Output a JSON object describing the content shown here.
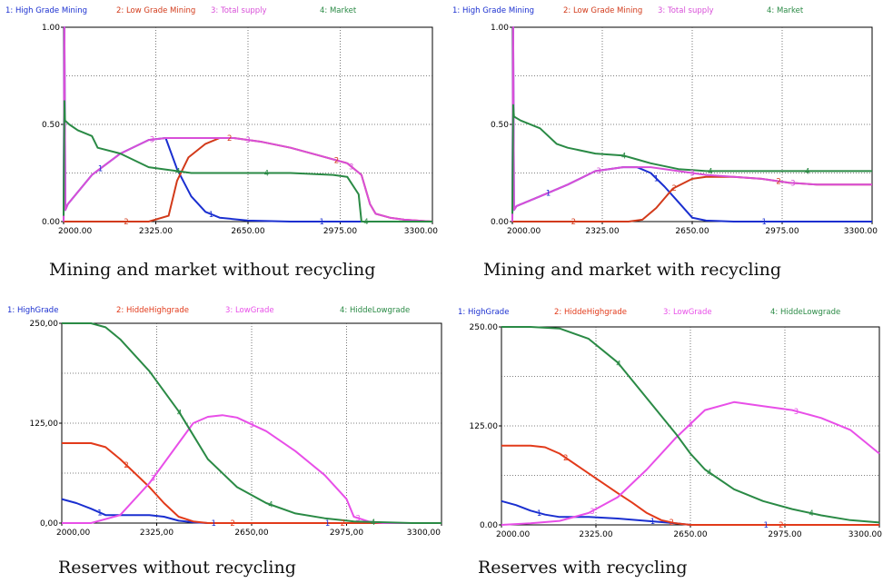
{
  "chart_data": [
    {
      "type": "line",
      "caption": "Mining and market without recycling",
      "legend": [
        "1: High Grade Mining",
        "2: Low Grade Mining",
        "3: Total supply",
        "4: Market"
      ],
      "colors": [
        "#1a2fd0",
        "#d23a1a",
        "#d84fd8",
        "#2a8a45"
      ],
      "xlim": [
        2000,
        3300
      ],
      "ylim": [
        0,
        1
      ],
      "x_ticks": [
        "2000.00",
        "2325.00",
        "2650.00",
        "2975.00",
        "3300.00"
      ],
      "y_ticks": [
        "0.00",
        "0.50",
        "1.00"
      ],
      "series": [
        {
          "name": "High Grade Mining",
          "x": [
            2000,
            2003,
            2006,
            2015,
            2100,
            2200,
            2300,
            2360,
            2400,
            2450,
            2500,
            2550,
            2650,
            2800,
            3000,
            3300
          ],
          "y": [
            0,
            1.0,
            0.06,
            0.09,
            0.24,
            0.35,
            0.42,
            0.43,
            0.27,
            0.13,
            0.05,
            0.02,
            0.005,
            0,
            0,
            0
          ]
        },
        {
          "name": "Low Grade Mining",
          "x": [
            2000,
            2300,
            2370,
            2400,
            2440,
            2500,
            2550,
            2600,
            2700,
            2800,
            2900,
            3000,
            3050,
            3080,
            3100,
            3150,
            3200,
            3300
          ],
          "y": [
            0,
            0,
            0.03,
            0.21,
            0.33,
            0.4,
            0.43,
            0.43,
            0.41,
            0.38,
            0.34,
            0.3,
            0.24,
            0.09,
            0.04,
            0.02,
            0.01,
            0
          ]
        },
        {
          "name": "Total supply",
          "x": [
            2000,
            2003,
            2006,
            2015,
            2100,
            2200,
            2300,
            2360,
            2400,
            2450,
            2500,
            2550,
            2600,
            2700,
            2800,
            2900,
            3000,
            3050,
            3080,
            3100,
            3150,
            3200,
            3300
          ],
          "y": [
            0,
            1.0,
            0.06,
            0.09,
            0.24,
            0.35,
            0.42,
            0.43,
            0.43,
            0.43,
            0.43,
            0.43,
            0.43,
            0.41,
            0.38,
            0.34,
            0.3,
            0.24,
            0.09,
            0.04,
            0.02,
            0.01,
            0
          ]
        },
        {
          "name": "Market",
          "x": [
            2000,
            2003,
            2005,
            2020,
            2050,
            2100,
            2120,
            2200,
            2300,
            2400,
            2450,
            2600,
            2800,
            2950,
            3000,
            3040,
            3050,
            3300
          ],
          "y": [
            0.03,
            0.62,
            0.52,
            0.5,
            0.47,
            0.44,
            0.38,
            0.35,
            0.28,
            0.26,
            0.25,
            0.25,
            0.25,
            0.24,
            0.23,
            0.14,
            0.0,
            0.0
          ]
        }
      ]
    },
    {
      "type": "line",
      "caption": "Mining and market with recycling",
      "legend": [
        "1: High Grade Mining",
        "2: Low Grade Mining",
        "3: Total supply",
        "4: Market"
      ],
      "colors": [
        "#1a2fd0",
        "#d23a1a",
        "#d84fd8",
        "#2a8a45"
      ],
      "xlim": [
        2000,
        3300
      ],
      "ylim": [
        0,
        1
      ],
      "x_ticks": [
        "2000.00",
        "2325.00",
        "2650.00",
        "2975.00",
        "3300.00"
      ],
      "y_ticks": [
        "0.00",
        "0.50",
        "1.00"
      ],
      "series": [
        {
          "name": "High Grade Mining",
          "x": [
            2000,
            2003,
            2006,
            2015,
            2100,
            2200,
            2300,
            2400,
            2450,
            2500,
            2550,
            2600,
            2650,
            2700,
            2800,
            3300
          ],
          "y": [
            0,
            1.0,
            0.06,
            0.08,
            0.13,
            0.19,
            0.26,
            0.28,
            0.28,
            0.25,
            0.18,
            0.1,
            0.02,
            0.005,
            0,
            0
          ]
        },
        {
          "name": "Low Grade Mining",
          "x": [
            2000,
            2420,
            2470,
            2520,
            2580,
            2650,
            2700,
            2800,
            2900,
            3000,
            3100,
            3200,
            3300
          ],
          "y": [
            0,
            0,
            0.01,
            0.07,
            0.17,
            0.22,
            0.23,
            0.23,
            0.22,
            0.2,
            0.19,
            0.19,
            0.19
          ]
        },
        {
          "name": "Total supply",
          "x": [
            2000,
            2003,
            2006,
            2015,
            2100,
            2200,
            2300,
            2400,
            2450,
            2500,
            2550,
            2600,
            2650,
            2700,
            2800,
            2900,
            3000,
            3100,
            3200,
            3300
          ],
          "y": [
            0,
            1.0,
            0.06,
            0.08,
            0.13,
            0.19,
            0.26,
            0.28,
            0.28,
            0.28,
            0.27,
            0.26,
            0.25,
            0.24,
            0.23,
            0.22,
            0.2,
            0.19,
            0.19,
            0.19
          ]
        },
        {
          "name": "Market",
          "x": [
            2000,
            2003,
            2006,
            2030,
            2100,
            2160,
            2200,
            2300,
            2400,
            2450,
            2500,
            2600,
            2700,
            2800,
            2900,
            3000,
            3100,
            3200,
            3300
          ],
          "y": [
            0.04,
            0.6,
            0.54,
            0.52,
            0.48,
            0.4,
            0.38,
            0.35,
            0.34,
            0.32,
            0.3,
            0.27,
            0.26,
            0.26,
            0.26,
            0.26,
            0.26,
            0.26,
            0.26
          ]
        }
      ]
    },
    {
      "type": "line",
      "caption": "Reserves without recycling",
      "legend": [
        "1: HighGrade",
        "2: HiddeHighgrade",
        "3: LowGrade",
        "4: HiddeLowgrade"
      ],
      "colors": [
        "#1a2fd0",
        "#e23a1a",
        "#e84fe8",
        "#2a8a45"
      ],
      "xlim": [
        2000,
        3300
      ],
      "ylim": [
        0,
        250
      ],
      "x_ticks": [
        "2000,00",
        "2325,00",
        "2650,00",
        "2975,00",
        "3300,00"
      ],
      "y_ticks": [
        "0,00",
        "125,00",
        "250,00"
      ],
      "series": [
        {
          "name": "HighGrade",
          "x": [
            2000,
            2050,
            2100,
            2150,
            2200,
            2250,
            2300,
            2350,
            2400,
            2450,
            2500,
            3300
          ],
          "y": [
            30,
            25,
            18,
            10,
            10,
            10,
            10,
            8,
            3,
            1,
            0,
            0
          ]
        },
        {
          "name": "HiddeHighgrade",
          "x": [
            2000,
            2100,
            2150,
            2200,
            2300,
            2350,
            2400,
            2450,
            2500,
            3300
          ],
          "y": [
            100,
            100,
            95,
            80,
            45,
            25,
            8,
            2,
            0,
            0
          ]
        },
        {
          "name": "LowGrade",
          "x": [
            2000,
            2100,
            2200,
            2300,
            2400,
            2450,
            2500,
            2550,
            2600,
            2700,
            2800,
            2900,
            2975,
            3000,
            3050,
            3100,
            3300
          ],
          "y": [
            0,
            0,
            10,
            50,
            100,
            125,
            133,
            135,
            132,
            115,
            90,
            60,
            30,
            8,
            2,
            0,
            0
          ]
        },
        {
          "name": "HiddeLowgrade",
          "x": [
            2000,
            2100,
            2150,
            2200,
            2300,
            2400,
            2450,
            2500,
            2600,
            2700,
            2800,
            2900,
            3000,
            3100,
            3200,
            3300
          ],
          "y": [
            250,
            250,
            245,
            230,
            190,
            140,
            110,
            80,
            45,
            25,
            12,
            6,
            2,
            1,
            0,
            0
          ]
        }
      ]
    },
    {
      "type": "line",
      "caption": "Reserves with recycling",
      "legend": [
        "1: HighGrade",
        "2: HiddeHighgrade",
        "3: LowGrade",
        "4: HiddeLowgrade"
      ],
      "colors": [
        "#1a2fd0",
        "#e23a1a",
        "#e84fe8",
        "#2a8a45"
      ],
      "xlim": [
        2000,
        3300
      ],
      "ylim": [
        0,
        250
      ],
      "x_ticks": [
        "2000.00",
        "2325.00",
        "2650.00",
        "2975.00",
        "3300.00"
      ],
      "y_ticks": [
        "0.00",
        "125.00",
        "250.00"
      ],
      "series": [
        {
          "name": "HighGrade",
          "x": [
            2000,
            2050,
            2100,
            2150,
            2200,
            2300,
            2400,
            2500,
            2600,
            2650,
            2700,
            3300
          ],
          "y": [
            30,
            25,
            18,
            13,
            10,
            10,
            8,
            5,
            2,
            0,
            0,
            0
          ]
        },
        {
          "name": "HiddeHighgrade",
          "x": [
            2000,
            2100,
            2150,
            2200,
            2300,
            2400,
            2450,
            2500,
            2550,
            2600,
            2650,
            3300
          ],
          "y": [
            100,
            100,
            98,
            90,
            65,
            40,
            28,
            15,
            6,
            2,
            0,
            0
          ]
        },
        {
          "name": "LowGrade",
          "x": [
            2000,
            2100,
            2200,
            2300,
            2400,
            2500,
            2600,
            2700,
            2800,
            2900,
            3000,
            3100,
            3200,
            3300
          ],
          "y": [
            0,
            2,
            5,
            15,
            35,
            70,
            110,
            145,
            155,
            150,
            145,
            135,
            120,
            90
          ]
        },
        {
          "name": "HiddeLowgrade",
          "x": [
            2000,
            2100,
            2200,
            2300,
            2400,
            2500,
            2600,
            2650,
            2700,
            2800,
            2900,
            3000,
            3100,
            3200,
            3300
          ],
          "y": [
            250,
            250,
            248,
            235,
            205,
            160,
            115,
            90,
            70,
            45,
            30,
            20,
            12,
            6,
            3
          ]
        }
      ]
    }
  ]
}
